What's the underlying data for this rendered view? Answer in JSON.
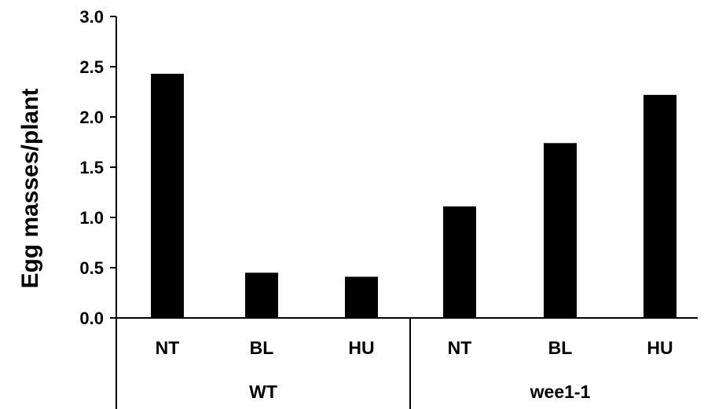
{
  "chart_data": {
    "type": "bar",
    "ylabel": "Egg masses/plant",
    "xlabel": "",
    "ylim": [
      0,
      3.0
    ],
    "yticks": [
      "0.0",
      "0.5",
      "1.0",
      "1.5",
      "2.0",
      "2.5",
      "3.0"
    ],
    "categories": [
      "NT",
      "BL",
      "HU",
      "NT",
      "BL",
      "HU"
    ],
    "values": [
      2.43,
      0.45,
      0.41,
      1.11,
      1.74,
      2.22
    ],
    "groups": [
      {
        "label": "WT",
        "categories": [
          "NT",
          "BL",
          "HU"
        ]
      },
      {
        "label": "wee1-1",
        "categories": [
          "NT",
          "BL",
          "HU"
        ]
      }
    ],
    "bar_color": "#000000",
    "grid": false,
    "legend": "none"
  }
}
